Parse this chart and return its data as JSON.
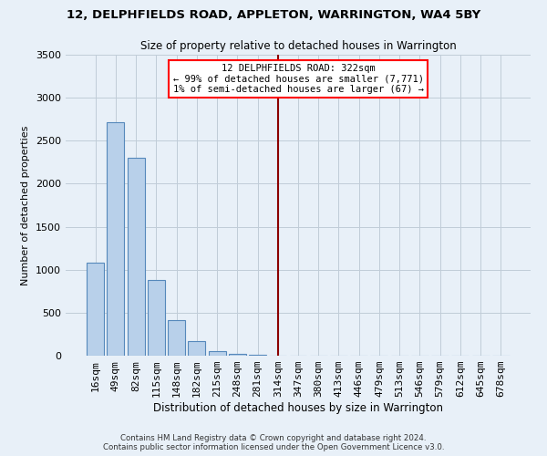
{
  "title": "12, DELPHFIELDS ROAD, APPLETON, WARRINGTON, WA4 5BY",
  "subtitle": "Size of property relative to detached houses in Warrington",
  "xlabel": "Distribution of detached houses by size in Warrington",
  "ylabel": "Number of detached properties",
  "categories": [
    "16sqm",
    "49sqm",
    "82sqm",
    "115sqm",
    "148sqm",
    "182sqm",
    "215sqm",
    "248sqm",
    "281sqm",
    "314sqm",
    "347sqm",
    "380sqm",
    "413sqm",
    "446sqm",
    "479sqm",
    "513sqm",
    "546sqm",
    "579sqm",
    "612sqm",
    "645sqm",
    "678sqm"
  ],
  "values": [
    1080,
    2720,
    2300,
    880,
    410,
    170,
    50,
    20,
    10,
    5,
    3,
    2,
    1,
    1,
    0,
    0,
    0,
    0,
    0,
    0,
    0
  ],
  "bar_color": "#b8d0ea",
  "bar_edge_color": "#5588bb",
  "highlight_index": 9,
  "highlight_line_color": "#8b0000",
  "annotation_line1": "12 DELPHFIELDS ROAD: 322sqm",
  "annotation_line2": "← 99% of detached houses are smaller (7,771)",
  "annotation_line3": "1% of semi-detached houses are larger (67) →",
  "annotation_box_color": "white",
  "annotation_box_edge_color": "red",
  "ylim": [
    0,
    3500
  ],
  "yticks": [
    0,
    500,
    1000,
    1500,
    2000,
    2500,
    3000,
    3500
  ],
  "bg_color": "#e8f0f8",
  "grid_color": "#c0ccd8",
  "footer_line1": "Contains HM Land Registry data © Crown copyright and database right 2024.",
  "footer_line2": "Contains public sector information licensed under the Open Government Licence v3.0."
}
